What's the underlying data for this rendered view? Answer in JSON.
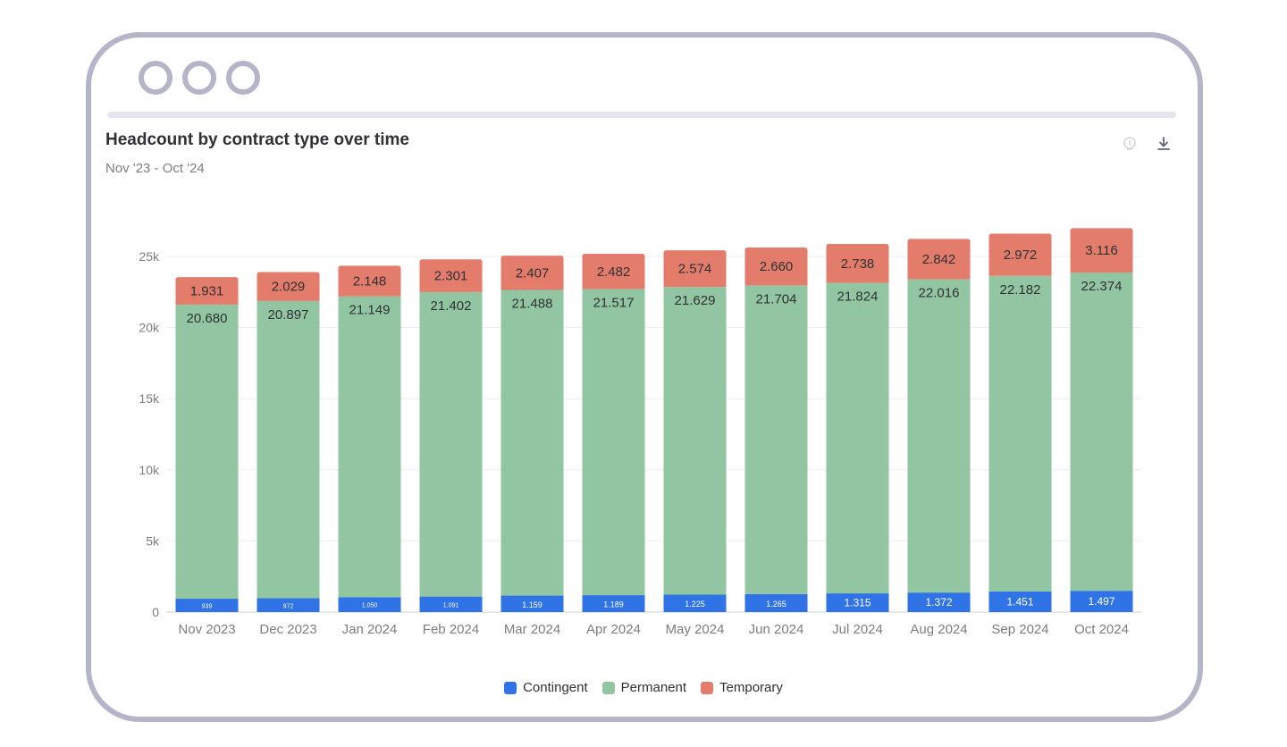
{
  "window": {
    "title": "Headcount by contract type over time",
    "subtitle": "Nov '23 - Oct '24"
  },
  "icons": {
    "insight": "lightbulb-icon",
    "download": "download-icon"
  },
  "colors": {
    "Contingent": "#2f73e6",
    "Permanent": "#92c5a2",
    "Temporary": "#e37c6b",
    "frame": "#b4b5c9"
  },
  "chart_data": {
    "type": "bar",
    "stacked": true,
    "title": "Headcount by contract type over time",
    "subtitle": "Nov '23 - Oct '24",
    "categories": [
      "Nov 2023",
      "Dec 2023",
      "Jan 2024",
      "Feb 2024",
      "Mar 2024",
      "Apr 2024",
      "May 2024",
      "Jun 2024",
      "Jul 2024",
      "Aug 2024",
      "Sep 2024",
      "Oct 2024"
    ],
    "series": [
      {
        "name": "Contingent",
        "color": "#2f73e6",
        "values": [
          939,
          972,
          1050,
          1091,
          1159,
          1189,
          1225,
          1265,
          1315,
          1372,
          1451,
          1497
        ],
        "labels": [
          "939",
          "972",
          "1.050",
          "1.091",
          "1.159",
          "1.189",
          "1.225",
          "1.265",
          "1.315",
          "1.372",
          "1.451",
          "1.497"
        ]
      },
      {
        "name": "Permanent",
        "color": "#92c5a2",
        "values": [
          20680,
          20897,
          21149,
          21402,
          21488,
          21517,
          21629,
          21704,
          21824,
          22016,
          22182,
          22374
        ],
        "labels": [
          "20.680",
          "20.897",
          "21.149",
          "21.402",
          "21.488",
          "21.517",
          "21.629",
          "21.704",
          "21.824",
          "22.016",
          "22.182",
          "22.374"
        ]
      },
      {
        "name": "Temporary",
        "color": "#e37c6b",
        "values": [
          1931,
          2029,
          2148,
          2301,
          2407,
          2482,
          2574,
          2660,
          2738,
          2842,
          2972,
          3116
        ],
        "labels": [
          "1.931",
          "2.029",
          "2.148",
          "2.301",
          "2.407",
          "2.482",
          "2.574",
          "2.660",
          "2.738",
          "2.842",
          "2.972",
          "3.116"
        ]
      }
    ],
    "yticks": [
      "0",
      "5k",
      "10k",
      "15k",
      "20k",
      "25k"
    ],
    "ylim": [
      0,
      25000
    ],
    "grid": true,
    "legend": "bottom-center"
  }
}
